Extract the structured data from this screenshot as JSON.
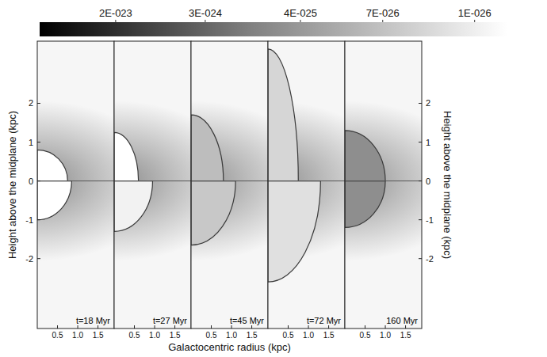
{
  "chart_data": {
    "type": "heatmap",
    "x_label": "Galactocentric radius (kpc)",
    "y_label": "Height above the midplane (kpc)",
    "xlim": [
      0,
      1.9
    ],
    "ylim": [
      -3.8,
      3.6
    ],
    "xticks": [
      0.5,
      {
        "value": 1,
        "label": "1.0"
      },
      1.5
    ],
    "yticks": [
      -2,
      -1,
      0,
      1,
      2
    ],
    "colorbar": {
      "range": [
        1e-22,
        5e-27
      ],
      "log": true,
      "ticks": [
        {
          "value": 2e-23,
          "label": "2E-023"
        },
        {
          "value": 3e-24,
          "label": "3E-024"
        },
        {
          "value": 4e-25,
          "label": "4E-025"
        },
        {
          "value": 7e-26,
          "label": "7E-026"
        },
        {
          "value": 1e-26,
          "label": "1E-026"
        }
      ]
    },
    "panels": [
      {
        "label": "t=18 Myr",
        "upper_shell": {
          "r": 0.75,
          "z": 0.8,
          "color": "#ffffff"
        },
        "lower_shell": {
          "r": 0.85,
          "z": -1.0,
          "color": "#ffffff"
        }
      },
      {
        "label": "t=27 Myr",
        "upper_shell": {
          "r": 0.6,
          "z": 1.25,
          "color": "#ffffff"
        },
        "lower_shell": {
          "r": 0.95,
          "z": -1.3,
          "color": "#f2f2f2"
        }
      },
      {
        "label": "t=45 Myr",
        "upper_shell": {
          "r": 0.8,
          "z": 1.7,
          "color": "#bdbdbd"
        },
        "lower_shell": {
          "r": 1.1,
          "z": -1.65,
          "color": "#c8c8c8"
        }
      },
      {
        "label": "t=72 Myr",
        "upper_shell": {
          "r": 0.75,
          "z": 3.4,
          "color": "#d6d6d6"
        },
        "lower_shell": {
          "r": 1.3,
          "z": -2.6,
          "color": "#e0e0e0"
        }
      },
      {
        "label": "160 Myr",
        "upper_shell": {
          "r": 1.0,
          "z": 1.3,
          "color": "#8e8e8e"
        },
        "lower_shell": {
          "r": 1.0,
          "z": -1.2,
          "color": "#8e8e8e"
        }
      }
    ]
  }
}
